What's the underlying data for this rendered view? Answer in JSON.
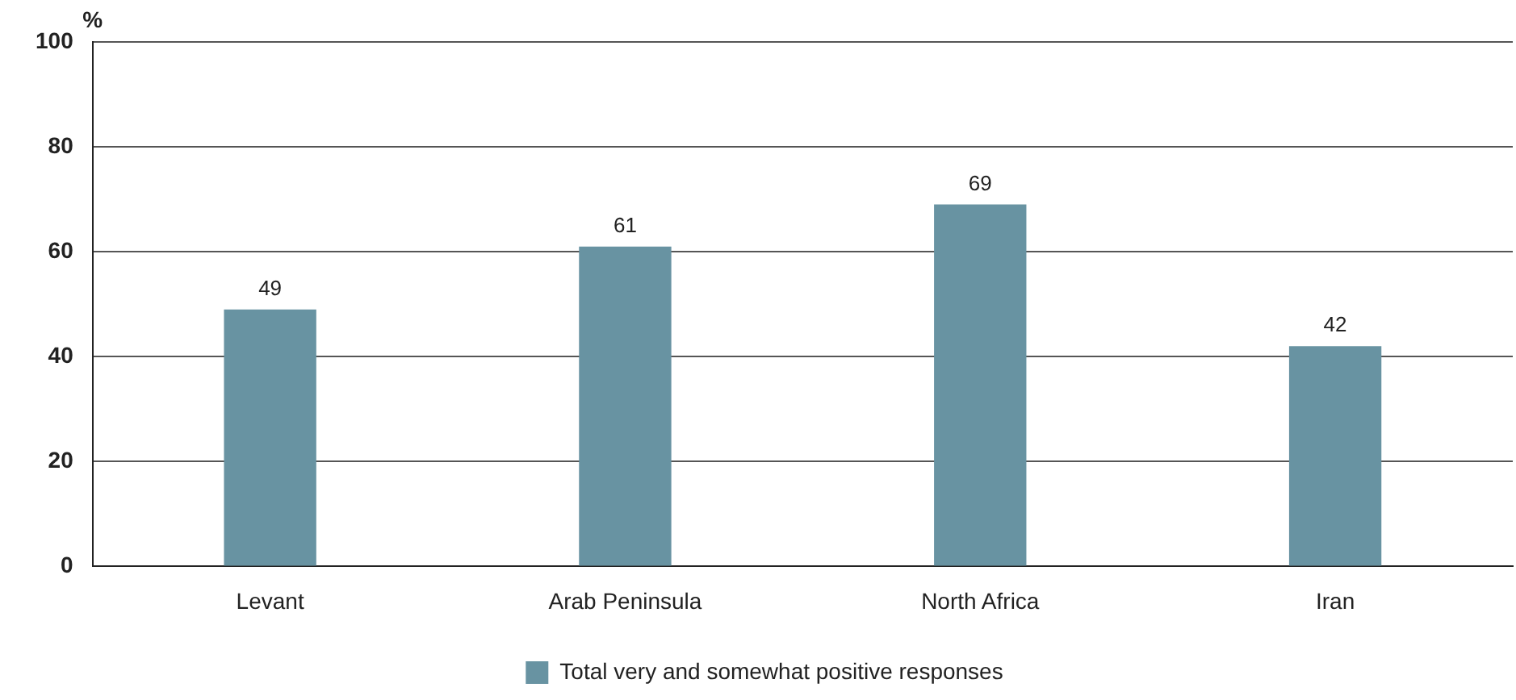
{
  "chart_data": {
    "type": "bar",
    "ylabel": "%",
    "categories": [
      "Levant",
      "Arab Peninsula",
      "North Africa",
      "Iran"
    ],
    "series": [
      {
        "name": "Total very and somewhat positive responses",
        "color": "#6893a2",
        "values": [
          49,
          61,
          69,
          42
        ]
      }
    ],
    "ylim": [
      0,
      100
    ],
    "yticks": [
      0,
      20,
      40,
      60,
      80,
      100
    ],
    "grid": "y",
    "legend": "bottom",
    "data_labels": true
  }
}
